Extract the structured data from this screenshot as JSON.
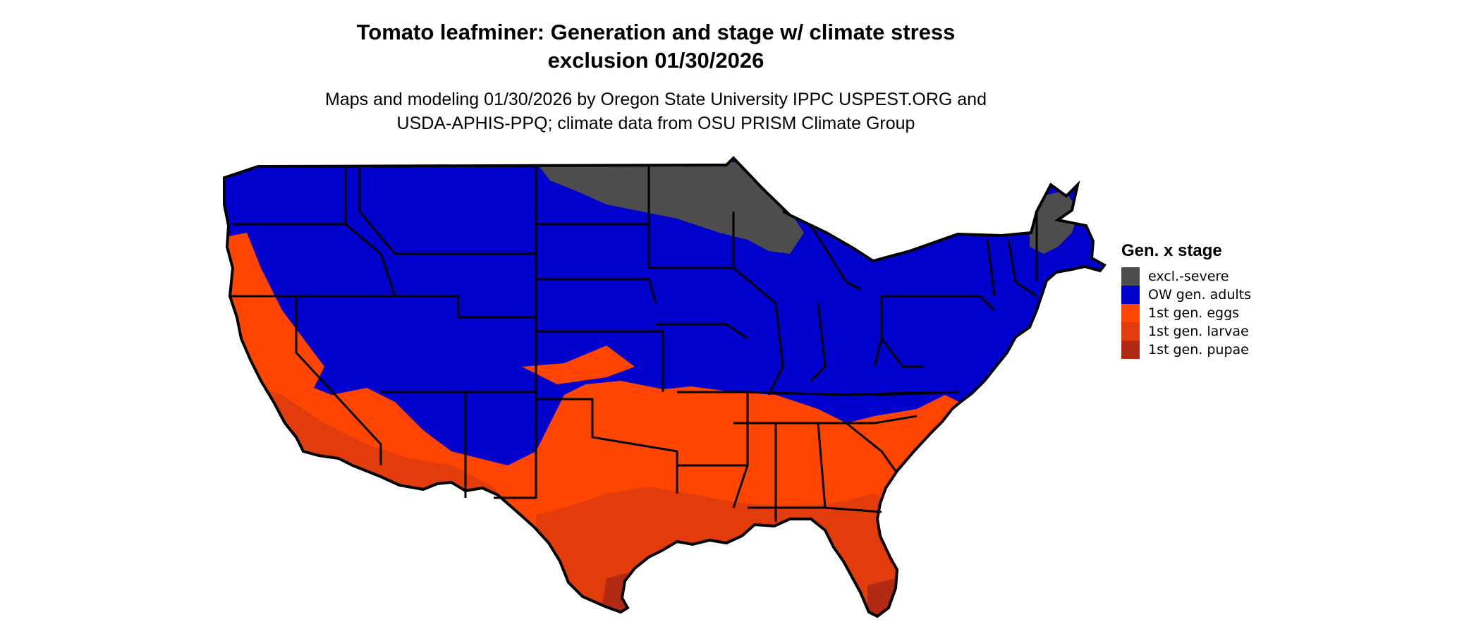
{
  "title": {
    "line1": "Tomato leafminer: Generation and stage w/ climate stress",
    "line2": "exclusion 01/30/2026"
  },
  "subtitle": {
    "line1": "Maps and modeling 01/30/2026 by Oregon State University IPPC USPEST.ORG and",
    "line2": "USDA-APHIS-PPQ; climate data from OSU PRISM Climate Group"
  },
  "legend": {
    "title": "Gen. x stage",
    "items": [
      {
        "label": "excl.-severe",
        "color": "#4d4d4d"
      },
      {
        "label": "OW gen. adults",
        "color": "#0000cd"
      },
      {
        "label": "1st gen. eggs",
        "color": "#ff4500"
      },
      {
        "label": "1st gen. larvae",
        "color": "#e23c0c"
      },
      {
        "label": "1st gen. pupae",
        "color": "#b22a14"
      }
    ]
  },
  "colors": {
    "excl_severe": "#4d4d4d",
    "ow_adults": "#0000cd",
    "eggs": "#ff4500",
    "larvae": "#e23c0c",
    "pupae": "#b22a14",
    "state_border": "#000000"
  }
}
